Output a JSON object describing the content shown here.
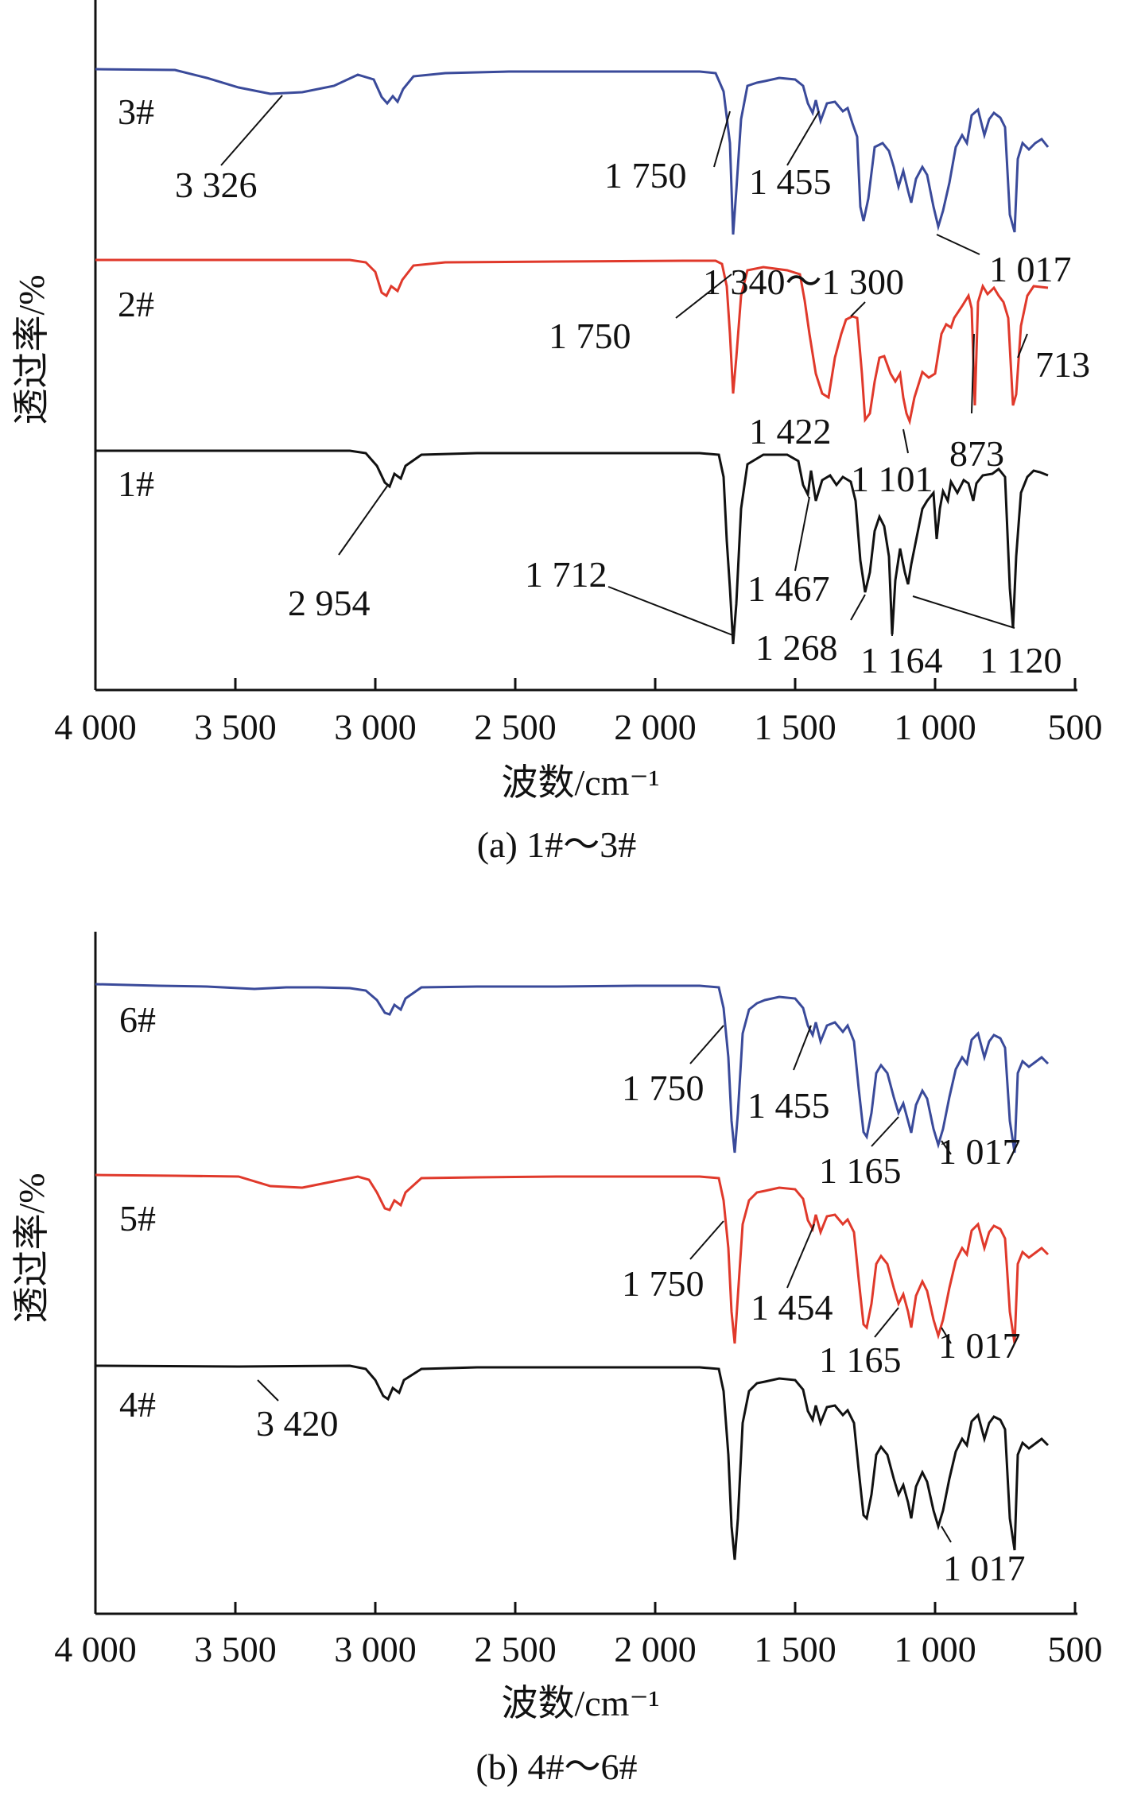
{
  "figure": {
    "panels": [
      {
        "caption": "(a) 1#～3#",
        "x_label": "波数/cm⁻¹",
        "y_label": "透过率/%",
        "x_ticks": [
          "4 000",
          "3 500",
          "3 000",
          "2 500",
          "2 000",
          "1 500",
          "1 000",
          "500"
        ],
        "trace_labels": [
          "3#",
          "2#",
          "1#"
        ],
        "annotations": [
          "3 326",
          "1 750",
          "1 455",
          "1 017",
          "1 340～1 300",
          "1 750",
          "1 422",
          "873",
          "713",
          "2 954",
          "1 712",
          "1 467",
          "1 101",
          "1 268",
          "1 164",
          "1 120"
        ]
      },
      {
        "caption": "(b) 4#～6#",
        "x_label": "波数/cm⁻¹",
        "y_label": "透过率/%",
        "x_ticks": [
          "4 000",
          "3 500",
          "3 000",
          "2 500",
          "2 000",
          "1 500",
          "1 000",
          "500"
        ],
        "trace_labels": [
          "6#",
          "5#",
          "4#"
        ],
        "annotations": [
          "1 750",
          "1 455",
          "1 165",
          "1 017",
          "1 750",
          "1 454",
          "1 165",
          "1 017",
          "3 420",
          "1 017"
        ]
      }
    ]
  },
  "chart_data": [
    {
      "type": "line",
      "xlabel": "波数/cm⁻¹",
      "ylabel": "透过率/%",
      "xlim": [
        4000,
        500
      ],
      "x_reversed": true,
      "grid": false,
      "series": [
        {
          "name": "3#",
          "color": "#3a4a9a",
          "peaks_cm-1": [
            3326,
            2954,
            1750,
            1455,
            1268,
            1164,
            1017,
            713
          ]
        },
        {
          "name": "2#",
          "color": "#e0392b",
          "peaks_cm-1": [
            2954,
            1750,
            1422,
            1268,
            1164,
            1101,
            873,
            713
          ]
        },
        {
          "name": "1#",
          "color": "#111111",
          "peaks_cm-1": [
            2954,
            1712,
            1467,
            1268,
            1164,
            1120,
            1101,
            713
          ]
        }
      ]
    },
    {
      "type": "line",
      "xlabel": "波数/cm⁻¹",
      "ylabel": "透过率/%",
      "xlim": [
        4000,
        500
      ],
      "x_reversed": true,
      "grid": false,
      "series": [
        {
          "name": "6#",
          "color": "#3a4a9a",
          "peaks_cm-1": [
            2954,
            1750,
            1455,
            1268,
            1165,
            1017,
            713
          ]
        },
        {
          "name": "5#",
          "color": "#e0392b",
          "peaks_cm-1": [
            3420,
            2954,
            1750,
            1454,
            1268,
            1165,
            1017,
            713
          ]
        },
        {
          "name": "4#",
          "color": "#111111",
          "peaks_cm-1": [
            3420,
            2954,
            1750,
            1454,
            1268,
            1165,
            1017,
            713
          ]
        }
      ]
    }
  ]
}
